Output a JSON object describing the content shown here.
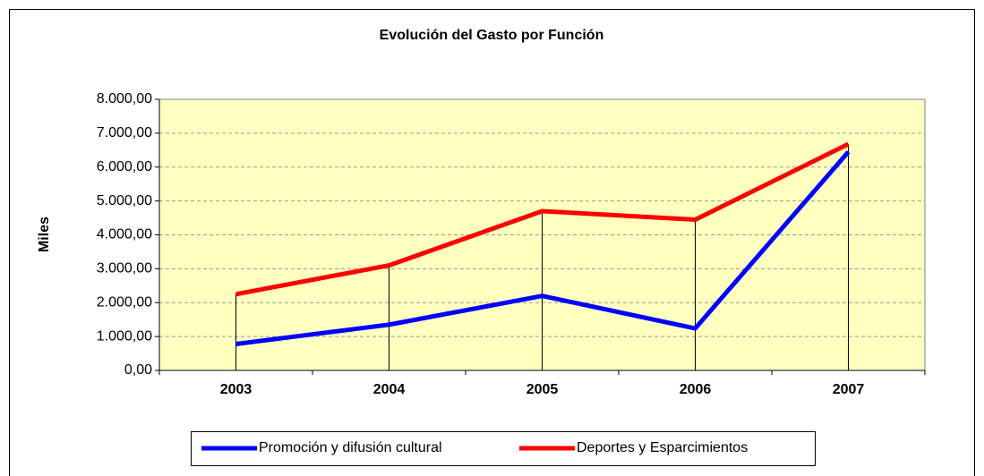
{
  "chart_data": {
    "type": "line",
    "title": "Evolución del Gasto por Función",
    "ylabel": "Miles",
    "categories": [
      "2003",
      "2004",
      "2005",
      "2006",
      "2007"
    ],
    "series": [
      {
        "name": "Promoción y difusión cultural",
        "color": "#0000ff",
        "values": [
          780,
          1350,
          2200,
          1240,
          6450
        ]
      },
      {
        "name": "Deportes y Esparcimientos",
        "color": "#ff0000",
        "values": [
          2250,
          3100,
          4700,
          4450,
          6680
        ]
      }
    ],
    "ylim": [
      0,
      8000
    ],
    "yticks": [
      {
        "value": 0,
        "label": "0,00"
      },
      {
        "value": 1000,
        "label": "1.000,00"
      },
      {
        "value": 2000,
        "label": "2.000,00"
      },
      {
        "value": 3000,
        "label": "3.000,00"
      },
      {
        "value": 4000,
        "label": "4.000,00"
      },
      {
        "value": 5000,
        "label": "5.000,00"
      },
      {
        "value": 6000,
        "label": "6.000,00"
      },
      {
        "value": 7000,
        "label": "7.000,00"
      },
      {
        "value": 8000,
        "label": "8.000,00"
      }
    ],
    "grid": true,
    "legend": "bottom"
  }
}
